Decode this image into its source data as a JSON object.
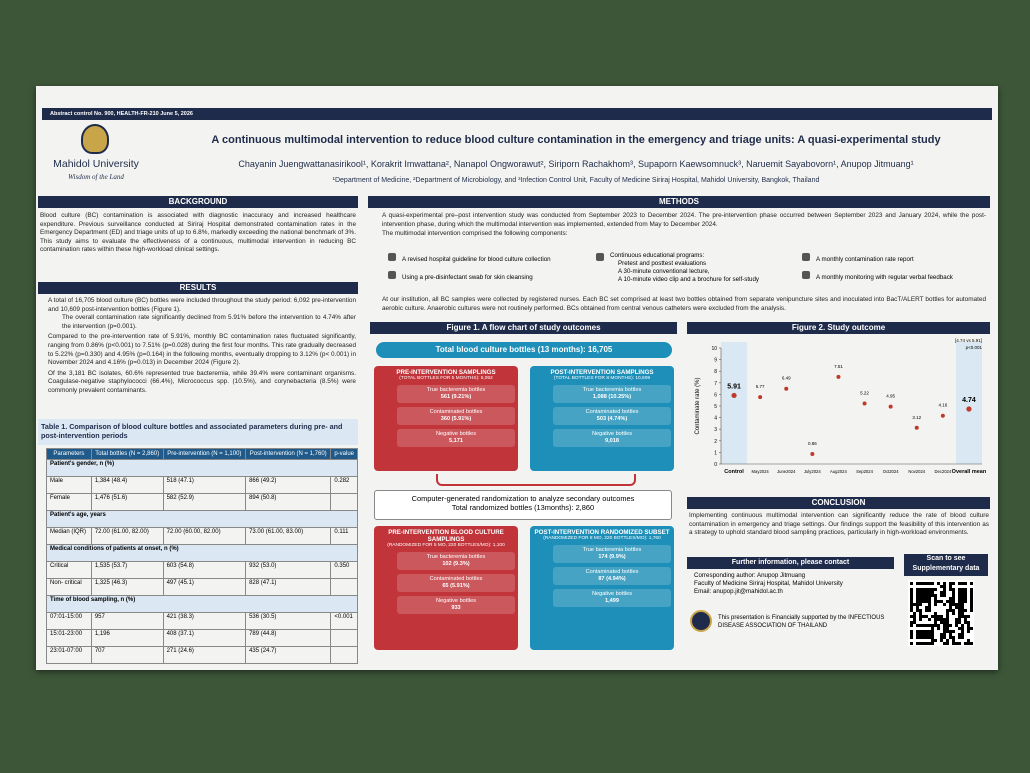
{
  "header": {
    "abstract_control": "Abstract control No. 900, HEALTH-FR-210 June 5, 2026",
    "university": "Mahidol University",
    "motto": "Wisdom of the Land",
    "title": "A continuous multimodal intervention to reduce blood culture contamination in the emergency and triage units: A quasi-experimental study",
    "authors": "Chayanin Juengwattanasirikool¹, Korakrit Imwattana², Nanapol Ongworawut², Siriporn Rachakhom³, Supaporn Kaewsomnuck³, Naruemit Sayabovorn¹, Anupop Jitmuang¹",
    "affiliations": "¹Department of Medicine, ²Department of Microbiology, and ³Infection Control Unit, Faculty of Medicine Siriraj Hospital, Mahidol University, Bangkok, Thailand"
  },
  "background": {
    "heading": "BACKGROUND",
    "text": "Blood culture (BC) contamination is associated with diagnostic inaccuracy and increased healthcare expenditure. Previous surveillance conducted at Siriraj Hospital demonstrated contamination rates in the Emergency Department (ED) and triage units of up to 6.8%, markedly exceeding the national benchmark of 3%. This study aims to evaluate the effectiveness of a continuous, multimodal intervention in reducing BC contamination rates within these high-workload clinical settings."
  },
  "results": {
    "heading": "RESULTS",
    "bullets": [
      {
        "text": "A total of 16,705 blood culture (BC) bottles were included throughout the study period: 6,092 pre-intervention and 10,609 post-intervention bottles (Figure 1).",
        "sub": "The overall contamination rate significantly declined from 5.91% before the intervention to 4.74% after the intervention (p=0.001)."
      },
      {
        "text": "Compared to the pre-intervention rate of 5.91%, monthly BC contamination rates fluctuated significantly, ranging from 0.86% (p<0.001) to 7.51% (p=0.028) during the first four months. This rate gradually decreased to 5.22% (p=0.330) and 4.95% (p=0.164) in the following months, eventually dropping to 3.12% (p< 0.001) in November 2024 and 4.16% (p=0.013) in December 2024 (Figure 2)."
      },
      {
        "text": "Of the 3,181 BC isolates, 60.6% represented true bacteremia, while 39.4% were contaminant organisms. Coagulase-negative staphylococci (66.4%), Micrococcus spp. (10.5%), and corynebacteria (8.5%) were commonly prevalent contaminants."
      }
    ]
  },
  "table": {
    "title": "Table 1. Comparison of blood culture bottles and associated parameters during pre- and post-intervention periods",
    "header": [
      "Parameters",
      "Total bottles (N = 2,860)",
      "Pre-intervention (N = 1,100)",
      "Post-intervention (N = 1,760)",
      "p-value"
    ],
    "rows": [
      [
        "Patient's gender, n (%)"
      ],
      [
        "Male",
        "1,384 (48.4)",
        "518 (47.1)",
        "866 (49.2)",
        "0.282"
      ],
      [
        "Female",
        "1,476 (51.6)",
        "582 (52.9)",
        "894 (50.8)"
      ],
      [
        "Patient's age, years"
      ],
      [
        "Median (IQR)",
        "72.00 (61.00, 82.00)",
        "72.00 (60.00, 82.00)",
        "73.00 (61.00, 83.00)",
        "0.111"
      ],
      [
        "Medical conditions of patients at onset, n (%)"
      ],
      [
        "Critical",
        "1,535 (53.7)",
        "603 (54.8)",
        "932 (53.0)",
        "0.350"
      ],
      [
        "Non- critical",
        "1,325 (46.3)",
        "497 (45.1)",
        "828 (47.1)"
      ],
      [
        "Time of blood sampling, n (%)"
      ],
      [
        "07:01-15:00",
        "957",
        "421 (38.3)",
        "536 (30.5)",
        "<0.001"
      ],
      [
        "15:01-23:00",
        "1,196",
        "408 (37.1)",
        "789 (44.8)"
      ],
      [
        "23:01-07:00",
        "707",
        "271 (24.6)",
        "435 (24.7)"
      ]
    ]
  },
  "methods": {
    "heading": "METHODS",
    "intro": "A quasi-experimental pre–post intervention study was conducted from September 2023 to December 2024. The pre-intervention phase occurred between September 2023 and January 2024, while the post-intervention phase, during which the multimodal intervention was implemented, extended from May to December 2024.",
    "components_intro": "The multimodal intervention comprised the following components:",
    "components": [
      [
        "A revised hospital guideline for blood culture collection",
        "Using a pre-disinfectant swab for skin cleansing"
      ],
      [
        "Continuous educational programs:",
        "Pretest and posttest evaluations",
        "A 30-minute conventional lecture,",
        "A 10-minute video clip  and  a brochure for self-study"
      ],
      [
        "A monthly contamination rate report",
        "A monthly monitoring with regular verbal feedback"
      ]
    ],
    "collection": "At our institution, all BC samples were collected by registered nurses. Each BC set comprised at least two bottles obtained from separate venipuncture sites and inoculated into BacT/ALERT bottles for automated aerobic culture. Anaerobic cultures were not routinely performed. BCs obtained from central venous catheters were excluded from the analysis."
  },
  "figure1": {
    "title": "Figure 1. A flow chart of study outcomes",
    "total": "Total blood culture bottles (13 months): 16,705",
    "groups": [
      {
        "title": "PRE-INTERVENTION SAMPLINGS",
        "subtitle": "(TOTAL BOTTLES FOR 5 MONTHS): 6,092",
        "items": [
          [
            "True bacteremia bottles",
            "561 (9.21%)"
          ],
          [
            "Contaminated bottles",
            "360 (5.91%)"
          ],
          [
            "Negative bottles",
            "5,171"
          ]
        ]
      },
      {
        "title": "POST-INTERVENTION SAMPLINGS",
        "subtitle": "(TOTAL BOTTLES FOR 8 MONTHS): 10,609",
        "items": [
          [
            "True bacteremia bottles",
            "1,088 (10.25%)"
          ],
          [
            "Contaminated bottles",
            "503 (4.74%)"
          ],
          [
            "Negative bottles",
            "9,018"
          ]
        ]
      }
    ],
    "randomization": "Computer-generated randomization to analyze secondary outcomes",
    "randomized_total": "Total randomized bottles (13months): 2,860",
    "subsets": [
      {
        "title": "PRE-INTERVENTION BLOOD CULTURE SAMPLINGS",
        "subtitle": "(RANDOMIZED FOR 5 MO, 220 BOTTLES/MO): 1,100",
        "items": [
          [
            "True bacteremia bottles",
            "102 (9.3%)"
          ],
          [
            "Contaminated bottles",
            "65 (5.91%)"
          ],
          [
            "Negative bottles",
            "933"
          ]
        ]
      },
      {
        "title": "POST-INTERVENTION RANDOMIZED SUBSET",
        "subtitle": "(RANDOMIZED FOR 8 MO, 220 BOTTLES/MO): 1,760",
        "items": [
          [
            "True bacteremia bottles",
            "174 (9.9%)"
          ],
          [
            "Contaminated bottles",
            "87 (4.94%)"
          ],
          [
            "Negative bottles",
            "1,499"
          ]
        ]
      }
    ]
  },
  "chart_data": {
    "type": "scatter",
    "title": "Figure 2. Study outcome",
    "y_label": "Contaminate rate (%)",
    "categories": [
      "Control",
      "May2024",
      "June2024",
      "July2024",
      "Aug2024",
      "Sep2024",
      "Oct2024",
      "Nov2024",
      "Dec2024",
      "Overall mean"
    ],
    "values": [
      5.91,
      5.77,
      6.49,
      0.86,
      7.51,
      5.22,
      4.95,
      3.12,
      4.16,
      4.74
    ],
    "color": "#c0392b",
    "ylim": [
      0,
      10
    ],
    "yticks": [
      0,
      1,
      2,
      3,
      4,
      5,
      6,
      7,
      8,
      9,
      10
    ],
    "annotations": [
      "[4.74 vs 5.91]",
      "p<0.001"
    ]
  },
  "conclusion": {
    "heading": "CONCLUSION",
    "text": "Implementing continuous multimodal intervention can significantly reduce the rate of blood culture contamination in emergency and triage settings. Our findings support the feasibility of this intervention as a strategy to uphold standard blood sampling practices, particularly in high-workload environments."
  },
  "contact": {
    "heading": "Further information, please contact",
    "items": [
      "Corresponding author: Anupop Jitmuang",
      "Faculty of Medicine Siriraj Hospital, Mahidol University",
      "Email: anupop.jit@mahidol.ac.th"
    ]
  },
  "qr": {
    "label": "Scan to see Supplementary data"
  },
  "funding": "This presentation is Financially supported by the INFECTIOUS DISEASE ASSOCIATION OF THAILAND"
}
